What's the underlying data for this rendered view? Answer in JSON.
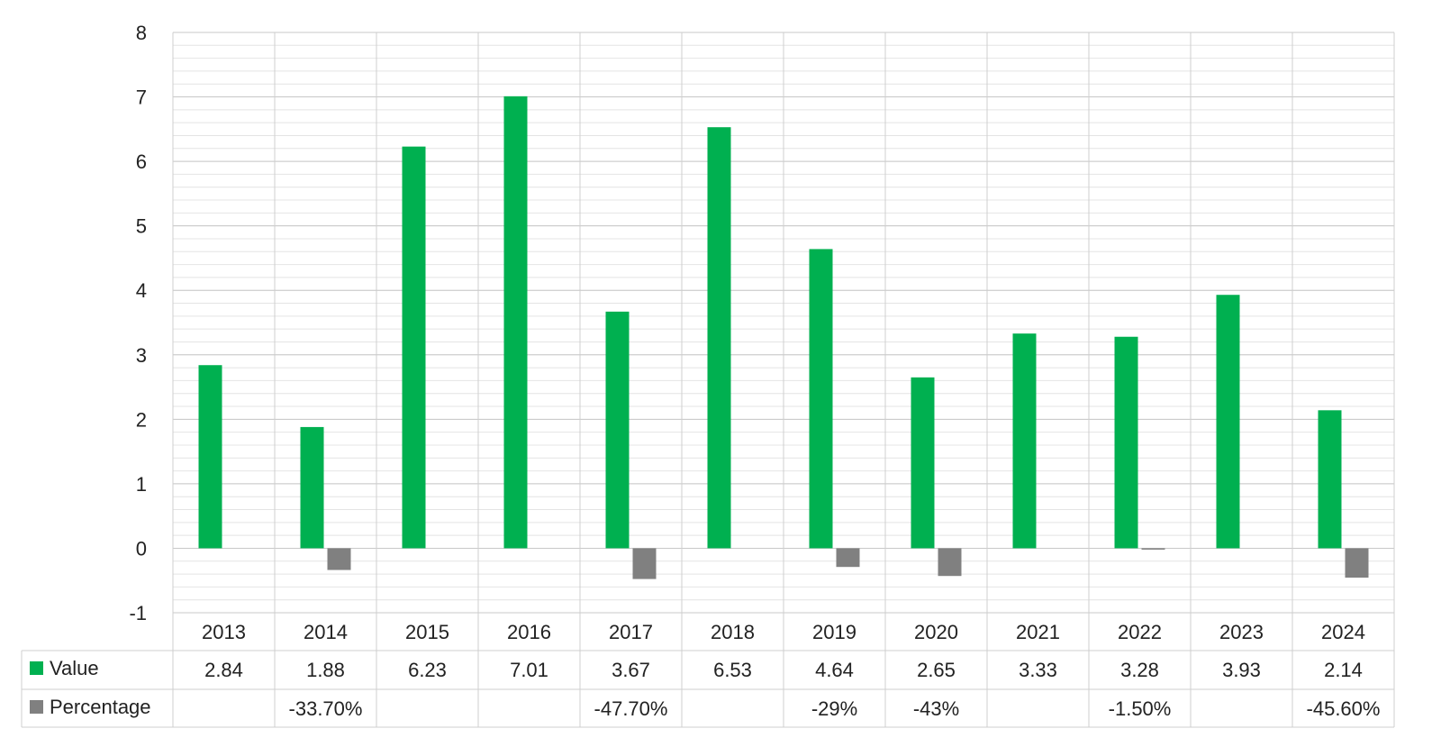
{
  "chart_data": {
    "type": "bar",
    "title": "",
    "xlabel": "",
    "ylabel": "",
    "ylim": [
      -1,
      8
    ],
    "yticks": [
      -1,
      0,
      1,
      2,
      3,
      4,
      5,
      6,
      7,
      8
    ],
    "grid": true,
    "legend_placement": "data-table",
    "categories": [
      "2013",
      "2014",
      "2015",
      "2016",
      "2017",
      "2018",
      "2019",
      "2020",
      "2021",
      "2022",
      "2023",
      "2024"
    ],
    "series": [
      {
        "name": "Value",
        "color": "#00b050",
        "values": [
          2.84,
          1.88,
          6.23,
          7.01,
          3.67,
          6.53,
          4.64,
          2.65,
          3.33,
          3.28,
          3.93,
          2.14
        ],
        "labels": [
          "2.84",
          "1.88",
          "6.23",
          "7.01",
          "3.67",
          "6.53",
          "4.64",
          "2.65",
          "3.33",
          "3.28",
          "3.93",
          "2.14"
        ]
      },
      {
        "name": "Percentage",
        "color": "#808080",
        "values": [
          null,
          -0.337,
          null,
          null,
          -0.477,
          null,
          -0.29,
          -0.43,
          null,
          -0.015,
          null,
          -0.456
        ],
        "labels": [
          "",
          "-33.70%",
          "",
          "",
          "-47.70%",
          "",
          "-29%",
          "-43%",
          "",
          "-1.50%",
          "",
          "-45.60%"
        ]
      }
    ]
  }
}
